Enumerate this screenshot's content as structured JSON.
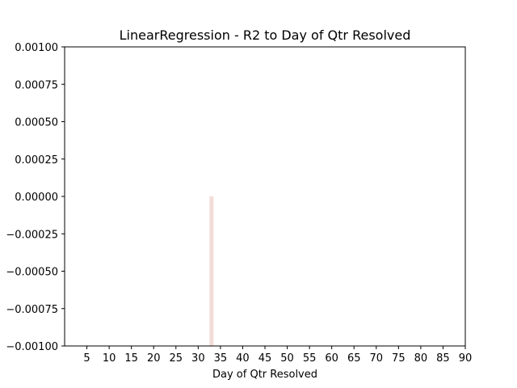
{
  "chart_data": {
    "type": "bar",
    "title": "LinearRegression - R2 to Day of Qtr Resolved",
    "xlabel": "Day of Qtr Resolved",
    "ylabel": "",
    "xlim": [
      0,
      90
    ],
    "ylim": [
      -0.001,
      0.001
    ],
    "xticks": [
      5,
      10,
      15,
      20,
      25,
      30,
      35,
      40,
      45,
      50,
      55,
      60,
      65,
      70,
      75,
      80,
      85,
      90
    ],
    "yticks": [
      0.001,
      0.00075,
      0.0005,
      0.00025,
      0,
      -0.00025,
      -0.0005,
      -0.00075,
      -0.001
    ],
    "ytick_labels": [
      "0.00100",
      "0.00075",
      "0.00050",
      "0.00025",
      "0.00000",
      "−0.00025",
      "−0.00050",
      "−0.00075",
      "−0.00100"
    ],
    "bars": [
      {
        "x": 33,
        "y0": -0.001,
        "y1": 0.0
      }
    ],
    "bar_color": "#f3ddd9",
    "grid": false,
    "legend": "none"
  }
}
